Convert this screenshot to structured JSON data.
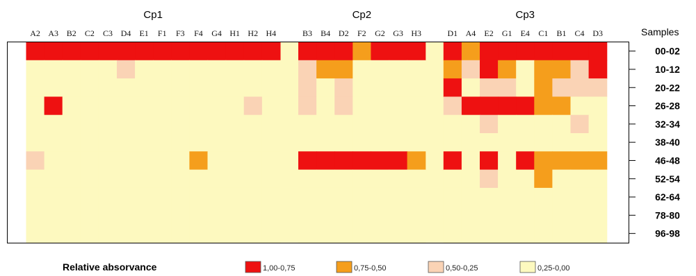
{
  "chart_data": {
    "type": "heatmap",
    "y_title": "Samples",
    "groups": [
      {
        "name": "Cp1",
        "start": 0,
        "count": 14
      },
      {
        "name": "Cp2",
        "start": 14,
        "count": 7
      },
      {
        "name": "Cp3",
        "start": 21,
        "count": 9
      }
    ],
    "columns": [
      "A2",
      "A3",
      "B2",
      "C2",
      "C3",
      "D4",
      "E1",
      "F1",
      "F3",
      "F4",
      "G4",
      "H1",
      "H2",
      "H4",
      "B3",
      "B4",
      "D2",
      "F2",
      "G2",
      "G3",
      "H3",
      "D1",
      "A4",
      "E2",
      "G1",
      "E4",
      "C1",
      "B1",
      "C4",
      "D3"
    ],
    "rows": [
      "00-02",
      "10-12",
      "20-22",
      "26-28",
      "32-34",
      "38-40",
      "46-48",
      "52-54",
      "62-64",
      "78-80",
      "96-98"
    ],
    "categories": [
      {
        "label": "1,00-0,75",
        "color": "#ee1111"
      },
      {
        "label": "0,75-0,50",
        "color": "#f59e1c"
      },
      {
        "label": "0,50-0,25",
        "color": "#fad3b5"
      },
      {
        "label": "0,25-0,00",
        "color": "#fdf9bf"
      }
    ],
    "values": [
      [
        0,
        0,
        0,
        0,
        0,
        0,
        0,
        0,
        0,
        0,
        0,
        0,
        0,
        0,
        0,
        0,
        0,
        1,
        0,
        0,
        0,
        0,
        1,
        0,
        0,
        0,
        0,
        0,
        0,
        0
      ],
      [
        3,
        3,
        3,
        3,
        3,
        2,
        3,
        3,
        3,
        3,
        3,
        3,
        3,
        3,
        2,
        1,
        1,
        3,
        3,
        3,
        3,
        1,
        2,
        0,
        1,
        3,
        1,
        1,
        2,
        0
      ],
      [
        3,
        3,
        3,
        3,
        3,
        3,
        3,
        3,
        3,
        3,
        3,
        3,
        3,
        3,
        2,
        3,
        2,
        3,
        3,
        3,
        3,
        0,
        3,
        2,
        2,
        3,
        1,
        2,
        2,
        2
      ],
      [
        3,
        0,
        3,
        3,
        3,
        3,
        3,
        3,
        3,
        3,
        3,
        3,
        2,
        3,
        2,
        3,
        2,
        3,
        3,
        3,
        3,
        2,
        0,
        0,
        0,
        0,
        1,
        1,
        3,
        3
      ],
      [
        3,
        3,
        3,
        3,
        3,
        3,
        3,
        3,
        3,
        3,
        3,
        3,
        3,
        3,
        3,
        3,
        3,
        3,
        3,
        3,
        3,
        3,
        3,
        2,
        3,
        3,
        3,
        3,
        2,
        3
      ],
      [
        3,
        3,
        3,
        3,
        3,
        3,
        3,
        3,
        3,
        3,
        3,
        3,
        3,
        3,
        3,
        3,
        3,
        3,
        3,
        3,
        3,
        3,
        3,
        3,
        3,
        3,
        3,
        3,
        3,
        3
      ],
      [
        2,
        3,
        3,
        3,
        3,
        3,
        3,
        3,
        3,
        1,
        3,
        3,
        3,
        3,
        0,
        0,
        0,
        0,
        0,
        0,
        1,
        0,
        3,
        0,
        3,
        0,
        1,
        1,
        1,
        1
      ],
      [
        3,
        3,
        3,
        3,
        3,
        3,
        3,
        3,
        3,
        3,
        3,
        3,
        3,
        3,
        3,
        3,
        3,
        3,
        3,
        3,
        3,
        3,
        3,
        2,
        3,
        3,
        1,
        3,
        3,
        3
      ],
      [
        3,
        3,
        3,
        3,
        3,
        3,
        3,
        3,
        3,
        3,
        3,
        3,
        3,
        3,
        3,
        3,
        3,
        3,
        3,
        3,
        3,
        3,
        3,
        3,
        3,
        3,
        3,
        3,
        3,
        3
      ],
      [
        3,
        3,
        3,
        3,
        3,
        3,
        3,
        3,
        3,
        3,
        3,
        3,
        3,
        3,
        3,
        3,
        3,
        3,
        3,
        3,
        3,
        3,
        3,
        3,
        3,
        3,
        3,
        3,
        3,
        3
      ],
      [
        3,
        3,
        3,
        3,
        3,
        3,
        3,
        3,
        3,
        3,
        3,
        3,
        3,
        3,
        3,
        3,
        3,
        3,
        3,
        3,
        3,
        3,
        3,
        3,
        3,
        3,
        3,
        3,
        3,
        3
      ]
    ],
    "legend": {
      "title": "Relative absorvance",
      "placement": "bottom"
    }
  }
}
